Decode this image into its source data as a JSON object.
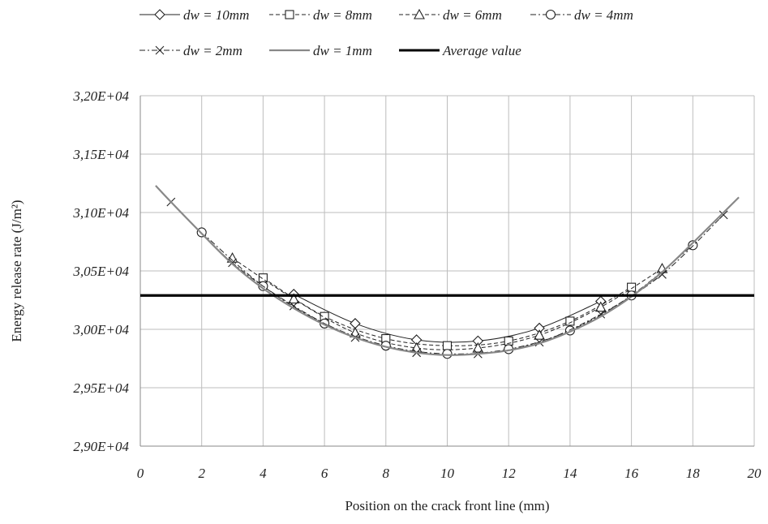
{
  "chart_data": {
    "type": "line",
    "title": "",
    "xlabel": "Position on the crack front line (mm)",
    "ylabel": "Energy release rate (J/m²)",
    "xlim": [
      0,
      20
    ],
    "ylim": [
      29000,
      32000
    ],
    "x_ticks": [
      0,
      2,
      4,
      6,
      8,
      10,
      12,
      14,
      16,
      18,
      20
    ],
    "x_tick_labels": [
      "0",
      "2",
      "4",
      "6",
      "8",
      "10",
      "12",
      "14",
      "16",
      "18",
      "20"
    ],
    "y_ticks": [
      29000,
      29500,
      30000,
      30500,
      31000,
      31500,
      32000
    ],
    "y_tick_labels": [
      "2,90E+04",
      "2,95E+04",
      "3,00E+04",
      "3,05E+04",
      "3,10E+04",
      "3,15E+04",
      "3,20E+04"
    ],
    "grid": true,
    "legend_position": "top",
    "series": [
      {
        "name": "dw = 10mm",
        "marker": "diamond",
        "line_style": "solid",
        "color": "#222222",
        "x": [
          5,
          7,
          9,
          11,
          13,
          15
        ],
        "y": [
          30300,
          30050,
          29910,
          29900,
          30010,
          30240
        ]
      },
      {
        "name": "dw = 8mm",
        "marker": "square",
        "line_style": "dashed",
        "color": "#222222",
        "x": [
          4,
          6,
          8,
          10,
          12,
          14,
          16
        ],
        "y": [
          30440,
          30110,
          29920,
          29860,
          29900,
          30070,
          30360
        ]
      },
      {
        "name": "dw = 6mm",
        "marker": "triangle",
        "line_style": "dashed",
        "color": "#222222",
        "x": [
          3,
          5,
          7,
          9,
          11,
          13,
          15,
          17
        ],
        "y": [
          30610,
          30260,
          29970,
          29840,
          29840,
          29950,
          30190,
          30520
        ]
      },
      {
        "name": "dw = 4mm",
        "marker": "circle",
        "line_style": "dash-dot",
        "color": "#222222",
        "x": [
          2,
          4,
          6,
          8,
          10,
          12,
          14,
          16,
          18
        ],
        "y": [
          30830,
          30370,
          30050,
          29860,
          29790,
          29830,
          29990,
          30290,
          30720
        ]
      },
      {
        "name": "dw = 2mm",
        "marker": "x",
        "line_style": "dash-dot",
        "color": "#222222",
        "x": [
          1,
          3,
          5,
          7,
          9,
          11,
          13,
          15,
          17,
          19
        ],
        "y": [
          31090,
          30570,
          30200,
          29930,
          29800,
          29790,
          29890,
          30130,
          30470,
          30980
        ]
      },
      {
        "name": "dw = 1mm",
        "marker": "none",
        "line_style": "solid",
        "color": "#888888",
        "x": [
          0.5,
          1,
          2,
          3,
          4,
          5,
          6,
          7,
          8,
          9,
          10,
          11,
          12,
          13,
          14,
          15,
          16,
          17,
          18,
          19,
          19.5
        ],
        "y": [
          31230,
          31090,
          30820,
          30560,
          30350,
          30180,
          30040,
          29930,
          29850,
          29800,
          29780,
          29790,
          29820,
          29880,
          29980,
          30110,
          30280,
          30490,
          30740,
          31000,
          31130
        ]
      },
      {
        "name": "Average value",
        "marker": "none",
        "line_style": "solid-thick",
        "color": "#000000",
        "x": [
          0,
          20
        ],
        "y": [
          30290,
          30290
        ]
      }
    ]
  }
}
